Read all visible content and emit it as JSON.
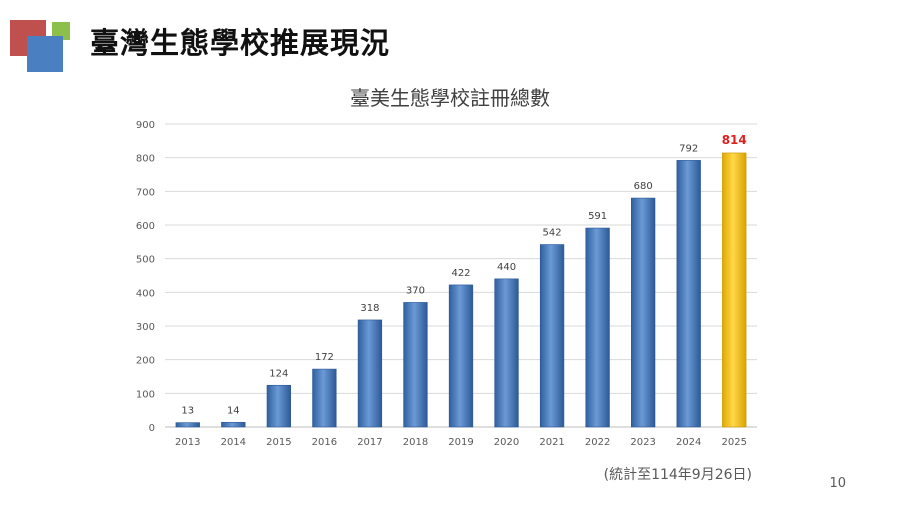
{
  "slide": {
    "title": "臺灣生態學校推展現況",
    "footnote": "(統計至114年9月26日)",
    "page_number": "10"
  },
  "colors": {
    "bar": "#4a7ec0",
    "highlight_bar": "#ffc000",
    "highlight_label": "#e02020",
    "grid": "#d9d9d9"
  },
  "chart_data": {
    "type": "bar",
    "title": "臺美生態學校註冊總數",
    "categories": [
      "2013",
      "2014",
      "2015",
      "2016",
      "2017",
      "2018",
      "2019",
      "2020",
      "2021",
      "2022",
      "2023",
      "2024",
      "2025"
    ],
    "values": [
      13,
      14,
      124,
      172,
      318,
      370,
      422,
      440,
      542,
      591,
      680,
      792,
      814
    ],
    "highlight_index": 12,
    "ylim": [
      0,
      900
    ],
    "yticks": [
      0,
      100,
      200,
      300,
      400,
      500,
      600,
      700,
      800,
      900
    ],
    "xlabel": "",
    "ylabel": "",
    "grid": true,
    "legend": "none"
  }
}
